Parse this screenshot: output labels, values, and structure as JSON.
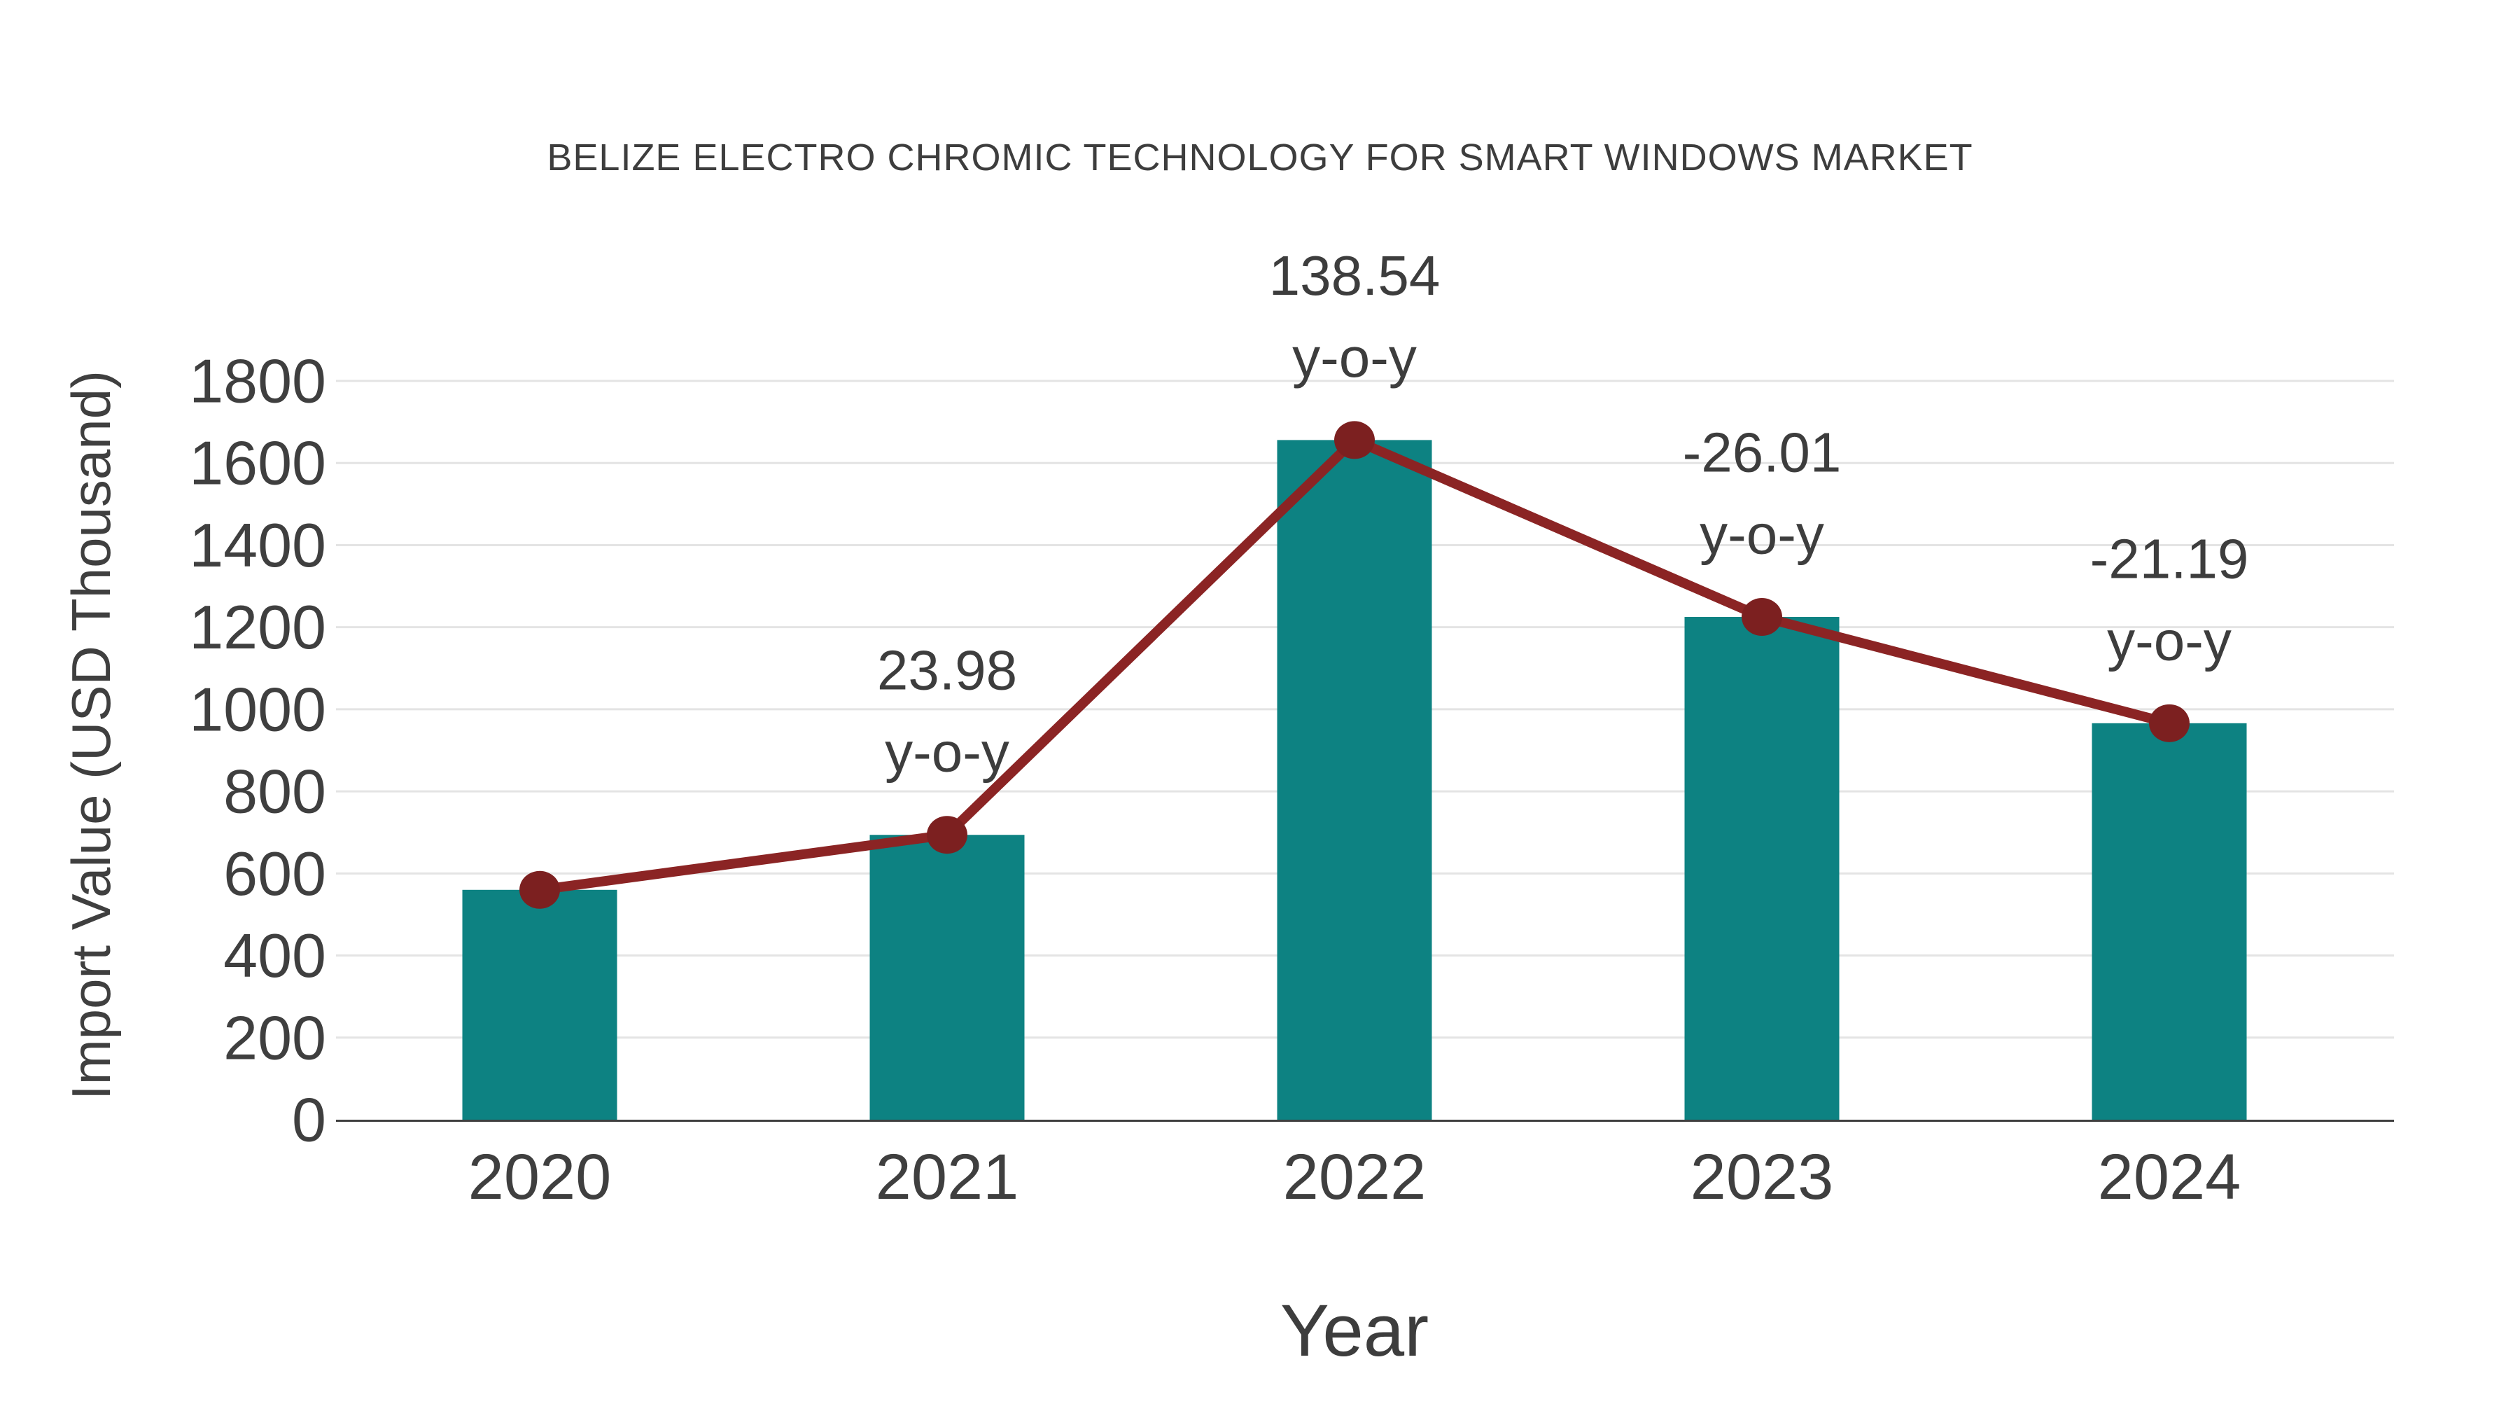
{
  "chart_data": {
    "type": "bar",
    "title": "BELIZE ELECTRO CHROMIC TECHNOLOGY FOR SMART WINDOWS MARKET",
    "xlabel": "Year",
    "ylabel": "Import Value (USD Thousand)",
    "categories": [
      "2020",
      "2021",
      "2022",
      "2023",
      "2024"
    ],
    "values": [
      560,
      694,
      1656,
      1225,
      966
    ],
    "ylim": [
      0,
      1800
    ],
    "ytick_step": 200,
    "ytick_labels": [
      "0",
      "200",
      "400",
      "600",
      "800",
      "1000",
      "1200",
      "1400",
      "1600",
      "1800"
    ],
    "grid": true,
    "legend_position": "none",
    "overlay_line": {
      "name": "year-over-year trend line",
      "values": [
        560,
        694,
        1656,
        1225,
        966
      ],
      "annotations": [
        {
          "category": "2021",
          "value_text": "23.98",
          "suffix_text": "y-o-y"
        },
        {
          "category": "2022",
          "value_text": "138.54",
          "suffix_text": "y-o-y"
        },
        {
          "category": "2023",
          "value_text": "-26.01",
          "suffix_text": "y-o-y"
        },
        {
          "category": "2024",
          "value_text": "-21.19",
          "suffix_text": "y-o-y"
        }
      ]
    },
    "colors": {
      "bar": "#0d8282",
      "line": "#8b2424",
      "marker": "#7c2020",
      "gridline": "#e4e4e4",
      "axis_line": "#3f3f3f",
      "text": "#3d3d3d",
      "tick_text": "#3f3f3f"
    }
  }
}
